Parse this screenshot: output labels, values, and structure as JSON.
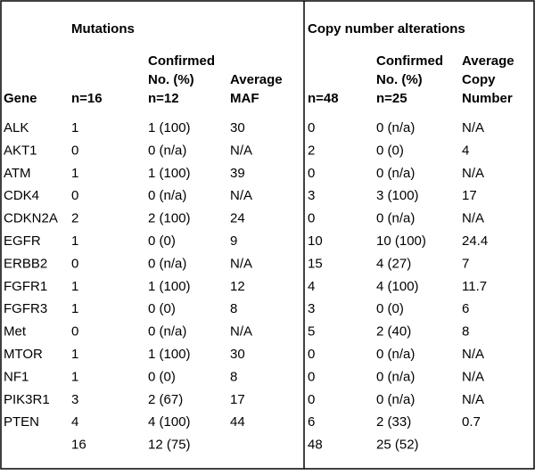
{
  "header": {
    "mutations": "Mutations",
    "copy_number": "Copy number alterations"
  },
  "columns": [
    [
      "Gene"
    ],
    [
      "n=16"
    ],
    [
      "Confirmed",
      "No. (%)",
      "n=12"
    ],
    [
      "Average",
      "MAF"
    ],
    [
      "n=48"
    ],
    [
      "Confirmed",
      "No. (%)",
      "n=25"
    ],
    [
      "Average",
      "Copy",
      "Number"
    ]
  ],
  "rows": [
    [
      "ALK",
      "1",
      "1 (100)",
      "30",
      "0",
      "0 (n/a)",
      "N/A"
    ],
    [
      "AKT1",
      "0",
      "0 (n/a)",
      "N/A",
      "2",
      "0 (0)",
      "4"
    ],
    [
      "ATM",
      "1",
      "1 (100)",
      "39",
      "0",
      "0 (n/a)",
      "N/A"
    ],
    [
      "CDK4",
      "0",
      "0 (n/a)",
      "N/A",
      "3",
      "3 (100)",
      "17"
    ],
    [
      "CDKN2A",
      "2",
      "2 (100)",
      "24",
      "0",
      "0 (n/a)",
      "N/A"
    ],
    [
      "EGFR",
      "1",
      "0 (0)",
      "9",
      "10",
      "10 (100)",
      "24.4"
    ],
    [
      "ERBB2",
      "0",
      "0 (n/a)",
      "N/A",
      "15",
      "4 (27)",
      "7"
    ],
    [
      "FGFR1",
      "1",
      "1 (100)",
      "12",
      "4",
      "4 (100)",
      "11.7"
    ],
    [
      "FGFR3",
      "1",
      "0 (0)",
      "8",
      "3",
      "0 (0)",
      "6"
    ],
    [
      "Met",
      "0",
      "0 (n/a)",
      "N/A",
      "5",
      "2 (40)",
      "8"
    ],
    [
      "MTOR",
      "1",
      "1 (100)",
      "30",
      "0",
      "0 (n/a)",
      "N/A"
    ],
    [
      "NF1",
      "1",
      "0 (0)",
      "8",
      "0",
      "0 (n/a)",
      "N/A"
    ],
    [
      "PIK3R1",
      "3",
      "2 (67)",
      "17",
      "0",
      "0 (n/a)",
      "N/A"
    ],
    [
      "PTEN",
      "4",
      "4 (100)",
      "44",
      "6",
      "2 (33)",
      "0.7"
    ]
  ],
  "totals": {
    "n16": "16",
    "n12": "12 (75)",
    "n48": "48",
    "n25": "25 (52)"
  }
}
